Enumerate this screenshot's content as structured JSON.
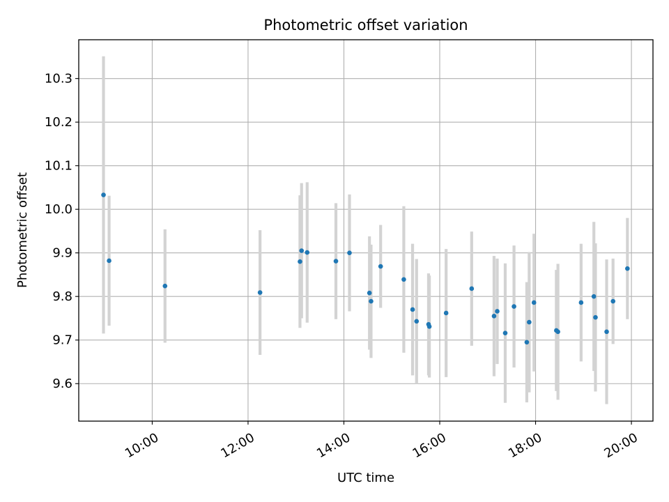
{
  "chart_data": {
    "type": "scatter",
    "title": "Photometric offset variation",
    "xlabel": "UTC time",
    "ylabel": "Photometric offset",
    "x_ticks": [
      "10:00",
      "12:00",
      "14:00",
      "16:00",
      "18:00",
      "20:00"
    ],
    "y_ticks": [
      "9.6",
      "9.7",
      "9.8",
      "9.9",
      "10.0",
      "10.1",
      "10.2",
      "10.3"
    ],
    "xlim": [
      "08:28",
      "20:27"
    ],
    "ylim": [
      9.514,
      10.389
    ],
    "grid": true,
    "colors": {
      "point": "#1f77b4",
      "errorbar": "#d3d3d3",
      "grid": "#b0b0b0"
    },
    "series": [
      {
        "points": [
          {
            "x": "08:59",
            "y": 10.033,
            "err": 0.318
          },
          {
            "x": "09:06",
            "y": 9.882,
            "err": 0.149
          },
          {
            "x": "10:16",
            "y": 9.824,
            "err": 0.13
          },
          {
            "x": "12:15",
            "y": 9.809,
            "err": 0.143
          },
          {
            "x": "13:05",
            "y": 9.88,
            "err": 0.152
          },
          {
            "x": "13:07",
            "y": 9.905,
            "err": 0.155
          },
          {
            "x": "13:14",
            "y": 9.901,
            "err": 0.161
          },
          {
            "x": "13:50",
            "y": 9.881,
            "err": 0.133
          },
          {
            "x": "14:07",
            "y": 9.9,
            "err": 0.134
          },
          {
            "x": "14:32",
            "y": 9.808,
            "err": 0.13
          },
          {
            "x": "14:34",
            "y": 9.789,
            "err": 0.13
          },
          {
            "x": "14:46",
            "y": 9.869,
            "err": 0.095
          },
          {
            "x": "15:15",
            "y": 9.839,
            "err": 0.168
          },
          {
            "x": "15:26",
            "y": 9.77,
            "err": 0.151
          },
          {
            "x": "15:31",
            "y": 9.743,
            "err": 0.143
          },
          {
            "x": "15:46",
            "y": 9.736,
            "err": 0.117
          },
          {
            "x": "15:47",
            "y": 9.731,
            "err": 0.117
          },
          {
            "x": "16:08",
            "y": 9.762,
            "err": 0.147
          },
          {
            "x": "16:40",
            "y": 9.818,
            "err": 0.131
          },
          {
            "x": "17:08",
            "y": 9.755,
            "err": 0.138
          },
          {
            "x": "17:12",
            "y": 9.766,
            "err": 0.121
          },
          {
            "x": "17:22",
            "y": 9.716,
            "err": 0.16
          },
          {
            "x": "17:33",
            "y": 9.777,
            "err": 0.14
          },
          {
            "x": "17:49",
            "y": 9.695,
            "err": 0.138
          },
          {
            "x": "17:52",
            "y": 9.741,
            "err": 0.161
          },
          {
            "x": "17:58",
            "y": 9.786,
            "err": 0.158
          },
          {
            "x": "18:26",
            "y": 9.722,
            "err": 0.139
          },
          {
            "x": "18:28",
            "y": 9.719,
            "err": 0.156
          },
          {
            "x": "18:57",
            "y": 9.786,
            "err": 0.135
          },
          {
            "x": "19:13",
            "y": 9.8,
            "err": 0.171
          },
          {
            "x": "19:15",
            "y": 9.752,
            "err": 0.17
          },
          {
            "x": "19:29",
            "y": 9.719,
            "err": 0.166
          },
          {
            "x": "19:37",
            "y": 9.789,
            "err": 0.098
          },
          {
            "x": "19:55",
            "y": 9.864,
            "err": 0.116
          }
        ]
      }
    ]
  }
}
